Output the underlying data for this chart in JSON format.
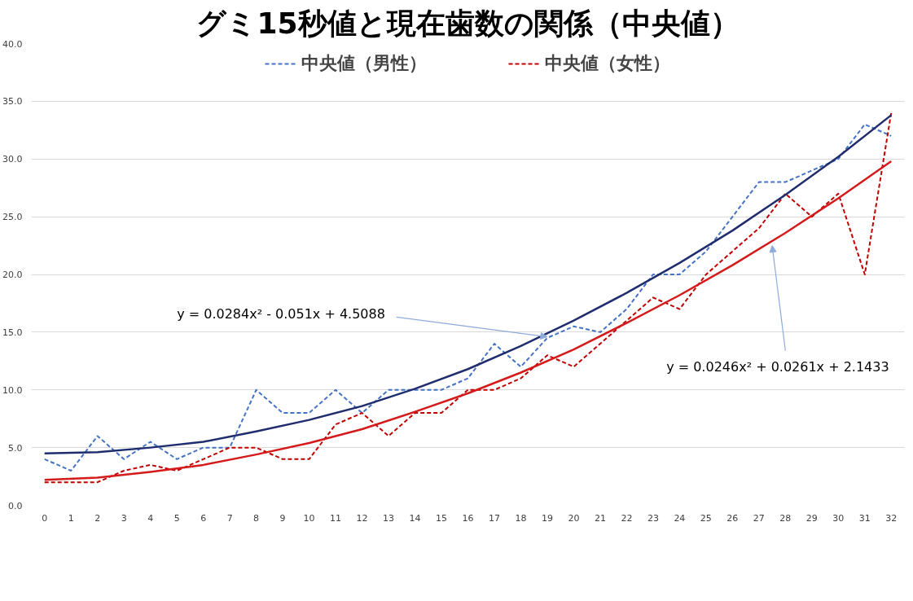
{
  "chart_data": {
    "type": "line",
    "title": "グミ15秒値と現在歯数の関係（中央値）",
    "x": [
      0,
      1,
      2,
      3,
      4,
      5,
      6,
      7,
      8,
      9,
      10,
      11,
      12,
      13,
      14,
      15,
      16,
      17,
      18,
      19,
      20,
      21,
      22,
      23,
      24,
      25,
      26,
      27,
      28,
      29,
      30,
      31,
      32
    ],
    "xlim": [
      -0.5,
      32.5
    ],
    "xticks": [
      0,
      1,
      2,
      3,
      4,
      5,
      6,
      7,
      8,
      9,
      10,
      11,
      12,
      13,
      14,
      15,
      16,
      17,
      18,
      19,
      20,
      21,
      22,
      23,
      24,
      25,
      26,
      27,
      28,
      29,
      30,
      31,
      32
    ],
    "ylim": [
      0,
      40
    ],
    "yticks": [
      {
        "value": 0,
        "label": "0.0"
      },
      {
        "value": 5,
        "label": "5.0"
      },
      {
        "value": 10,
        "label": "10.0"
      },
      {
        "value": 15,
        "label": "15.0"
      },
      {
        "value": 20,
        "label": "20.0"
      },
      {
        "value": 25,
        "label": "25.0"
      },
      {
        "value": 30,
        "label": "30.0"
      },
      {
        "value": 35,
        "label": "35.0"
      },
      {
        "value": 40,
        "label": "40.0"
      }
    ],
    "grid": "y",
    "legend": "top",
    "line_style": "dashed",
    "marker": "none",
    "series": [
      {
        "name": "中央値（男性）",
        "color": "#4472c4",
        "values": [
          4,
          3,
          6,
          4,
          5.5,
          4,
          5,
          5,
          10,
          8,
          8,
          10,
          8,
          10,
          10,
          10,
          11,
          14,
          12,
          14.5,
          15.5,
          15,
          17,
          20,
          20,
          22,
          25,
          28,
          28,
          29,
          30,
          33,
          32
        ]
      },
      {
        "name": "中央値（女性）",
        "color": "#c00000",
        "values": [
          2,
          2,
          2,
          3,
          3.5,
          3,
          4,
          5,
          5,
          4,
          4,
          7,
          8,
          6,
          8,
          8,
          10,
          10,
          11,
          13,
          12,
          14,
          16,
          18,
          17,
          20,
          22,
          24,
          27,
          25,
          27,
          20,
          34
        ]
      },
      {
        "type": "line",
        "line_style": "solid",
        "color": "#1f2d6e",
        "x": [
          0,
          2,
          4,
          6,
          8,
          10,
          12,
          14,
          16,
          18,
          20,
          22,
          24,
          26,
          28,
          30,
          32
        ],
        "values": [
          4.5,
          4.6,
          5.0,
          5.5,
          6.4,
          7.4,
          8.6,
          10.1,
          11.8,
          13.8,
          16.0,
          18.4,
          21.0,
          23.8,
          26.9,
          30.2,
          33.8
        ]
      },
      {
        "type": "line",
        "line_style": "solid",
        "color": "#d41a1a",
        "x": [
          0,
          2,
          4,
          6,
          8,
          10,
          12,
          14,
          16,
          18,
          20,
          22,
          24,
          26,
          28,
          30,
          32
        ],
        "values": [
          2.2,
          2.4,
          2.9,
          3.5,
          4.4,
          5.4,
          6.6,
          8.1,
          9.7,
          11.5,
          13.5,
          15.8,
          18.2,
          20.8,
          23.6,
          26.6,
          29.8
        ]
      }
    ],
    "annotations": [
      {
        "text": "y = 0.0284x² - 0.051x + 4.5088",
        "x": 19,
        "y": 14.6
      },
      {
        "text": "y = 0.0246x² + 0.0261x + 2.1433",
        "x": 27.5,
        "y": 22.5
      }
    ]
  }
}
